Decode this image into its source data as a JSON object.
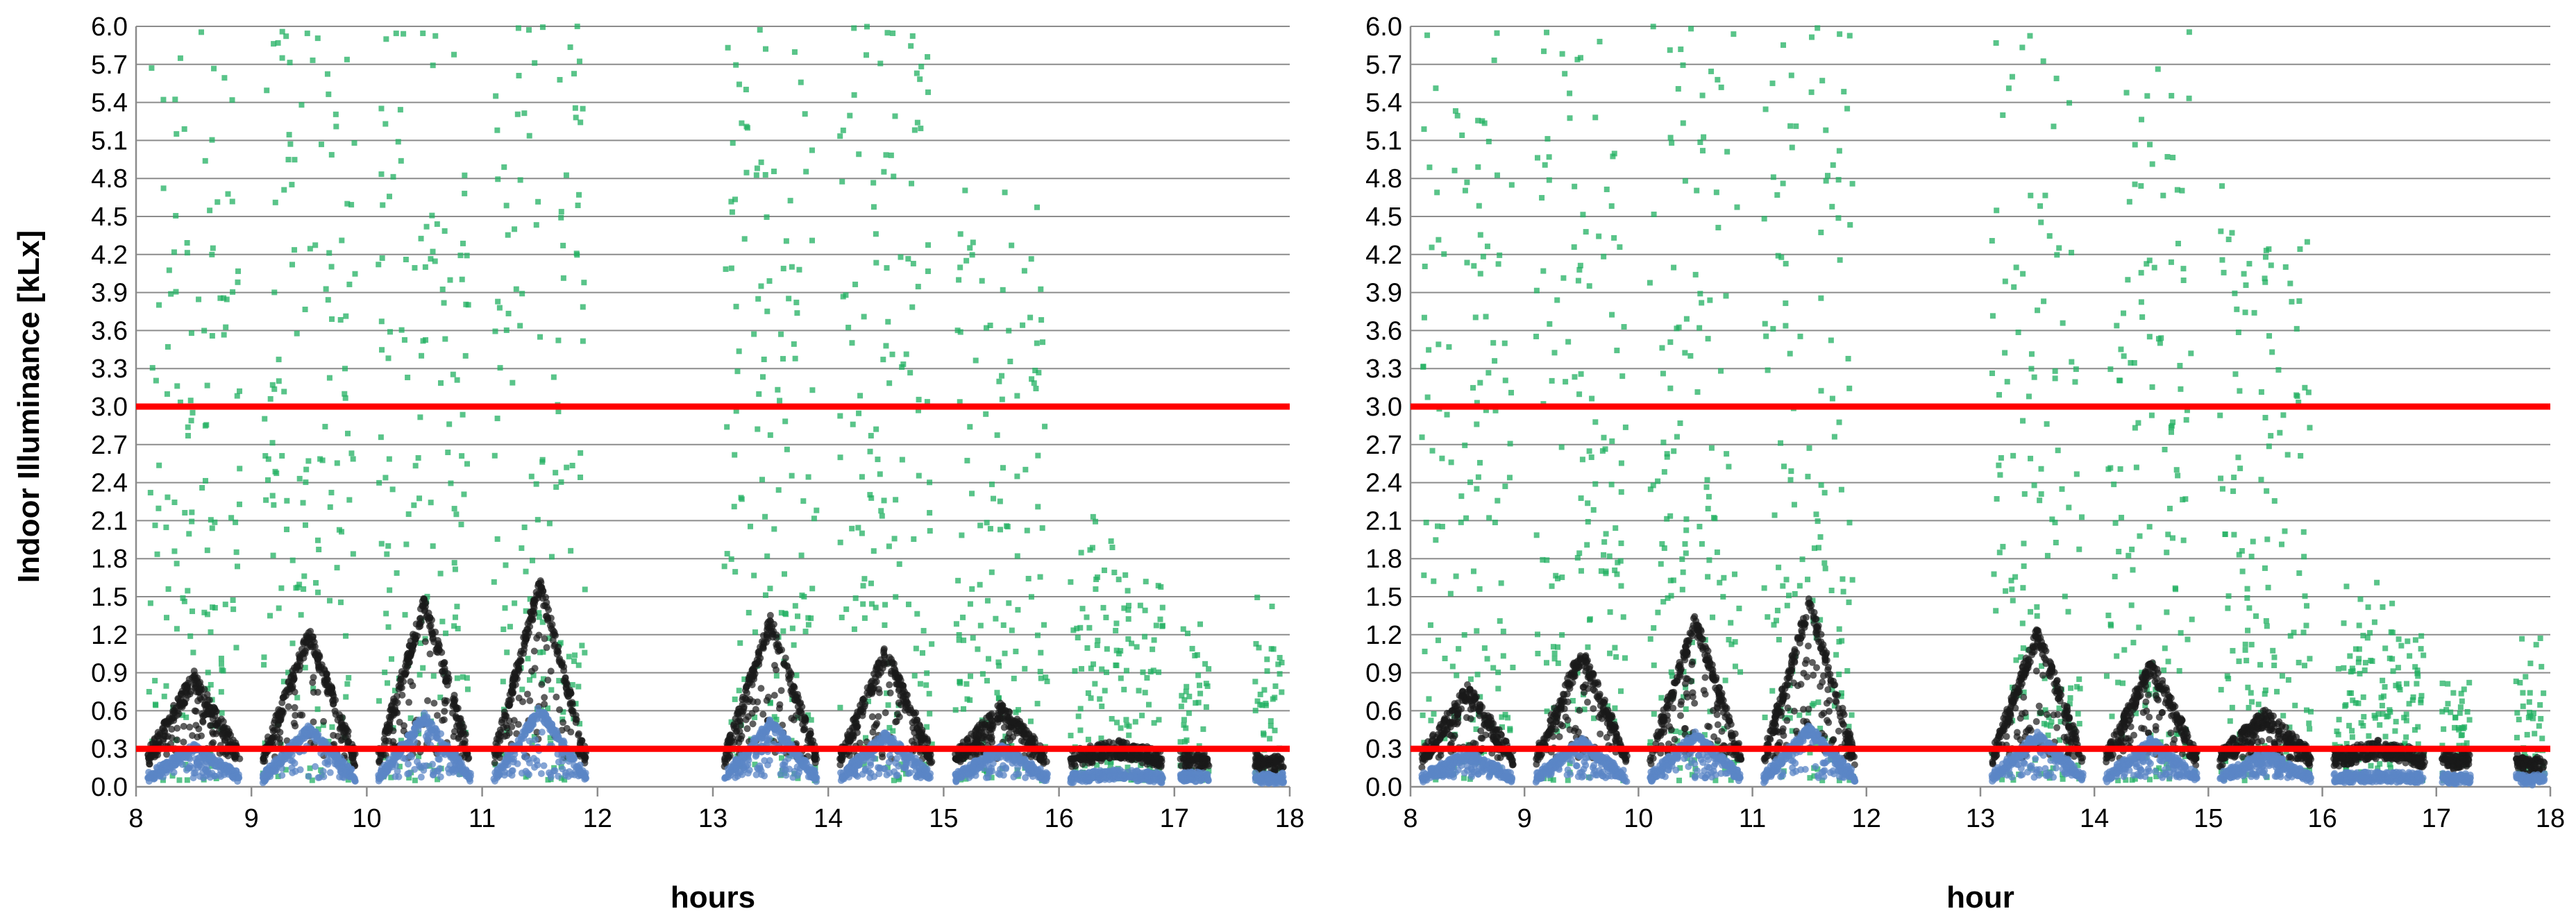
{
  "chart_data": [
    {
      "type": "scatter",
      "title": "",
      "xlabel": "hours",
      "ylabel": "Indoor Illuminance [kLx]",
      "xlim": [
        8,
        18
      ],
      "ylim": [
        0,
        6
      ],
      "x_ticks": [
        "8",
        "9",
        "10",
        "11",
        "12",
        "13",
        "14",
        "15",
        "16",
        "17",
        "18"
      ],
      "y_ticks": [
        "0.0",
        "0.3",
        "0.6",
        "0.9",
        "1.2",
        "1.5",
        "1.8",
        "2.1",
        "2.4",
        "2.7",
        "3.0",
        "3.3",
        "3.6",
        "3.9",
        "4.2",
        "4.5",
        "4.8",
        "5.1",
        "5.4",
        "5.7",
        "6.0"
      ],
      "grid": true,
      "threshold_lines": [
        {
          "y": 3.0,
          "color": "#ff0000"
        },
        {
          "y": 0.3,
          "color": "#ff0000"
        }
      ],
      "series_colors": {
        "green": "#21b062",
        "black": "#1a1a1a",
        "blue": "#5b86c5"
      },
      "series": [
        {
          "color_key": "green",
          "style": "scattered squares",
          "segments": [
            [
              8.1,
              8.9
            ],
            [
              9.1,
              9.9
            ],
            [
              10.1,
              10.9
            ],
            [
              11.1,
              11.9
            ],
            [
              13.1,
              13.9
            ],
            [
              14.1,
              14.9
            ],
            [
              15.1,
              15.9
            ],
            [
              16.1,
              16.9
            ],
            [
              17.05,
              17.3
            ],
            [
              17.7,
              17.95
            ]
          ],
          "peak_values": [
            5.7,
            6.0,
            6.0,
            6.0,
            5.8,
            6.0,
            4.5,
            1.7,
            1.0,
            1.0
          ]
        },
        {
          "color_key": "black",
          "style": "peaked bands",
          "segments": [
            [
              8.1,
              8.9
            ],
            [
              9.1,
              9.9
            ],
            [
              10.1,
              10.9
            ],
            [
              11.1,
              11.9
            ],
            [
              13.1,
              13.9
            ],
            [
              14.1,
              14.9
            ],
            [
              15.1,
              15.9
            ],
            [
              16.1,
              16.9
            ],
            [
              17.05,
              17.3
            ],
            [
              17.7,
              17.95
            ]
          ],
          "peak_values": [
            0.85,
            1.2,
            1.45,
            1.6,
            1.3,
            1.05,
            0.6,
            0.3,
            0.2,
            0.15
          ]
        },
        {
          "color_key": "blue",
          "style": "peaked bands",
          "segments": [
            [
              8.1,
              8.9
            ],
            [
              9.1,
              9.9
            ],
            [
              10.1,
              10.9
            ],
            [
              11.1,
              11.9
            ],
            [
              13.1,
              13.9
            ],
            [
              14.1,
              14.9
            ],
            [
              15.1,
              15.9
            ],
            [
              16.1,
              16.9
            ],
            [
              17.05,
              17.3
            ],
            [
              17.7,
              17.95
            ]
          ],
          "peak_values": [
            0.3,
            0.45,
            0.55,
            0.6,
            0.5,
            0.4,
            0.3,
            0.1,
            0.08,
            0.06
          ]
        }
      ]
    },
    {
      "type": "scatter",
      "title": "",
      "xlabel": "hour",
      "ylabel": "",
      "xlim": [
        8,
        18
      ],
      "ylim": [
        0,
        6
      ],
      "x_ticks": [
        "8",
        "9",
        "10",
        "11",
        "12",
        "13",
        "14",
        "15",
        "16",
        "17",
        "18"
      ],
      "y_ticks": [
        "0.0",
        "0.3",
        "0.6",
        "0.9",
        "1.2",
        "1.5",
        "1.8",
        "2.1",
        "2.4",
        "2.7",
        "3.0",
        "3.3",
        "3.6",
        "3.9",
        "4.2",
        "4.5",
        "4.8",
        "5.1",
        "5.4",
        "5.7",
        "6.0"
      ],
      "grid": true,
      "threshold_lines": [
        {
          "y": 3.0,
          "color": "#ff0000"
        },
        {
          "y": 0.3,
          "color": "#ff0000"
        }
      ],
      "series_colors": {
        "green": "#21b062",
        "black": "#1a1a1a",
        "blue": "#5b86c5"
      },
      "series": [
        {
          "color_key": "green",
          "style": "scattered squares",
          "segments": [
            [
              8.1,
              8.9
            ],
            [
              9.1,
              9.9
            ],
            [
              10.1,
              10.9
            ],
            [
              11.1,
              11.9
            ],
            [
              13.1,
              13.9
            ],
            [
              14.1,
              14.9
            ],
            [
              15.1,
              15.9
            ],
            [
              16.1,
              16.9
            ],
            [
              17.05,
              17.3
            ],
            [
              17.7,
              17.95
            ]
          ],
          "peak_values": [
            6.0,
            5.9,
            6.0,
            5.9,
            6.0,
            5.8,
            4.4,
            1.2,
            0.7,
            0.7
          ]
        },
        {
          "color_key": "black",
          "style": "peaked bands",
          "segments": [
            [
              8.1,
              8.9
            ],
            [
              9.1,
              9.9
            ],
            [
              10.1,
              10.9
            ],
            [
              11.1,
              11.9
            ],
            [
              13.1,
              13.9
            ],
            [
              14.1,
              14.9
            ],
            [
              15.1,
              15.9
            ],
            [
              16.1,
              16.9
            ],
            [
              17.05,
              17.3
            ],
            [
              17.7,
              17.95
            ]
          ],
          "peak_values": [
            0.75,
            1.05,
            1.3,
            1.45,
            1.2,
            0.95,
            0.55,
            0.3,
            0.2,
            0.12
          ]
        },
        {
          "color_key": "blue",
          "style": "peaked bands",
          "segments": [
            [
              8.1,
              8.9
            ],
            [
              9.1,
              9.9
            ],
            [
              10.1,
              10.9
            ],
            [
              11.1,
              11.9
            ],
            [
              13.1,
              13.9
            ],
            [
              14.1,
              14.9
            ],
            [
              15.1,
              15.9
            ],
            [
              16.1,
              16.9
            ],
            [
              17.05,
              17.3
            ],
            [
              17.7,
              17.95
            ]
          ],
          "peak_values": [
            0.25,
            0.35,
            0.4,
            0.45,
            0.4,
            0.35,
            0.25,
            0.08,
            0.06,
            0.05
          ]
        }
      ]
    }
  ]
}
